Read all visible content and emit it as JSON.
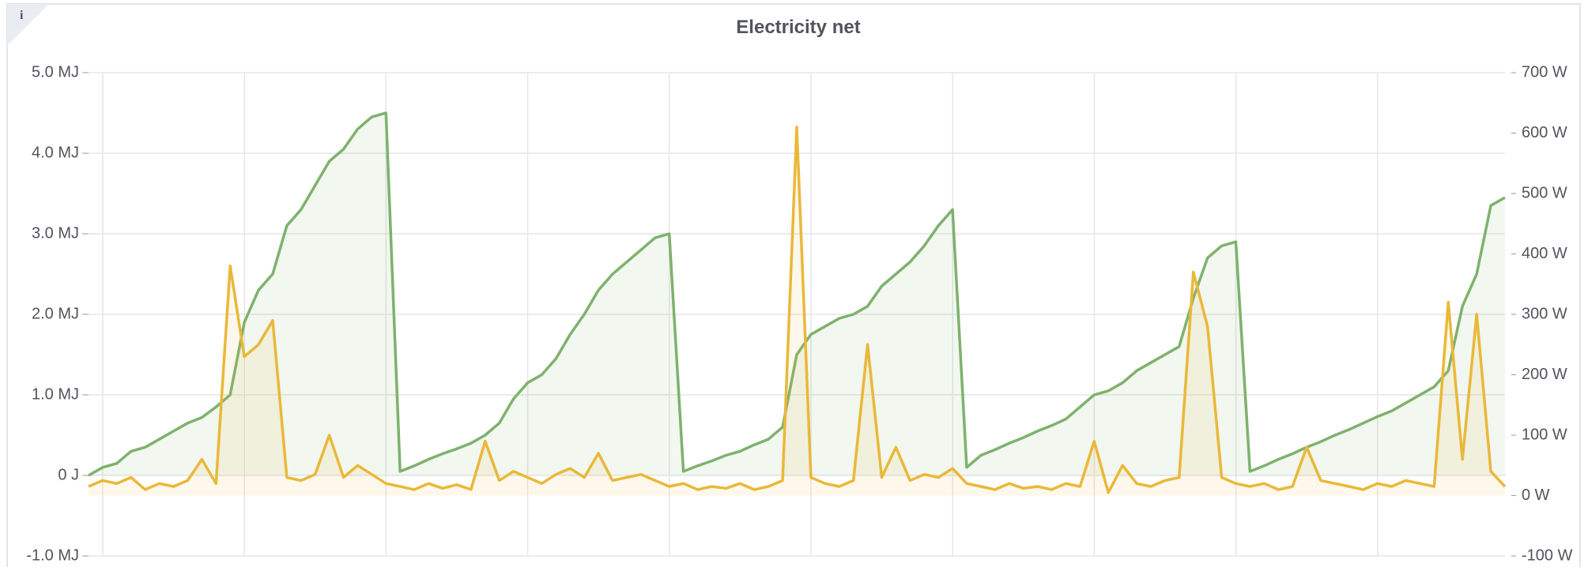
{
  "chart_data": {
    "type": "line",
    "title": "Electricity net",
    "info_label": "i",
    "grid": true,
    "fill": true,
    "ylim": [
      -1,
      5
    ],
    "yticks": [
      {
        "value": -1,
        "label": "-1.0 MJ"
      },
      {
        "value": 0,
        "label": "0 J"
      },
      {
        "value": 1,
        "label": "1.0 MJ"
      },
      {
        "value": 2,
        "label": "2.0 MJ"
      },
      {
        "value": 3,
        "label": "3.0 MJ"
      },
      {
        "value": 4,
        "label": "4.0 MJ"
      },
      {
        "value": 5,
        "label": "5.0 MJ"
      }
    ],
    "y2lim": [
      -100,
      700
    ],
    "y2ticks": [
      {
        "value": -100,
        "label": "-100 W"
      },
      {
        "value": 0,
        "label": "0 W"
      },
      {
        "value": 100,
        "label": "100 W"
      },
      {
        "value": 200,
        "label": "200 W"
      },
      {
        "value": 300,
        "label": "300 W"
      },
      {
        "value": 400,
        "label": "400 W"
      },
      {
        "value": 500,
        "label": "500 W"
      },
      {
        "value": 600,
        "label": "600 W"
      },
      {
        "value": 700,
        "label": "700 W"
      }
    ],
    "series": [
      {
        "color": "#7eb26d",
        "axis": "y",
        "values": [
          0.0,
          0.1,
          0.15,
          0.3,
          0.35,
          0.45,
          0.55,
          0.65,
          0.72,
          0.85,
          1.0,
          1.9,
          2.3,
          2.5,
          3.1,
          3.3,
          3.6,
          3.9,
          4.05,
          4.3,
          4.45,
          4.5,
          0.05,
          0.12,
          0.2,
          0.27,
          0.33,
          0.4,
          0.5,
          0.65,
          0.95,
          1.15,
          1.25,
          1.45,
          1.75,
          2.0,
          2.3,
          2.5,
          2.65,
          2.8,
          2.95,
          3.0,
          0.05,
          0.12,
          0.18,
          0.25,
          0.3,
          0.38,
          0.45,
          0.6,
          1.5,
          1.75,
          1.85,
          1.95,
          2.0,
          2.1,
          2.35,
          2.5,
          2.65,
          2.85,
          3.1,
          3.3,
          0.1,
          0.25,
          0.32,
          0.4,
          0.47,
          0.55,
          0.62,
          0.7,
          0.85,
          1.0,
          1.05,
          1.15,
          1.3,
          1.4,
          1.5,
          1.6,
          2.2,
          2.7,
          2.85,
          2.9,
          0.05,
          0.12,
          0.2,
          0.27,
          0.35,
          0.42,
          0.5,
          0.57,
          0.65,
          0.73,
          0.8,
          0.9,
          1.0,
          1.1,
          1.3,
          2.1,
          2.5,
          3.35,
          3.45
        ]
      },
      {
        "color": "#eab839",
        "axis": "y2",
        "values": [
          15,
          25,
          20,
          30,
          10,
          20,
          15,
          25,
          60,
          20,
          380,
          230,
          250,
          290,
          30,
          25,
          35,
          100,
          30,
          50,
          35,
          20,
          15,
          10,
          20,
          12,
          18,
          10,
          90,
          25,
          40,
          30,
          20,
          35,
          45,
          30,
          70,
          25,
          30,
          35,
          25,
          15,
          20,
          10,
          15,
          12,
          20,
          10,
          15,
          25,
          610,
          30,
          20,
          15,
          25,
          250,
          30,
          80,
          25,
          35,
          30,
          45,
          20,
          15,
          10,
          20,
          12,
          15,
          10,
          20,
          15,
          90,
          5,
          50,
          20,
          15,
          25,
          30,
          370,
          280,
          30,
          20,
          15,
          20,
          10,
          15,
          80,
          25,
          20,
          15,
          10,
          20,
          15,
          25,
          20,
          15,
          320,
          60,
          300,
          40,
          15
        ]
      }
    ]
  }
}
